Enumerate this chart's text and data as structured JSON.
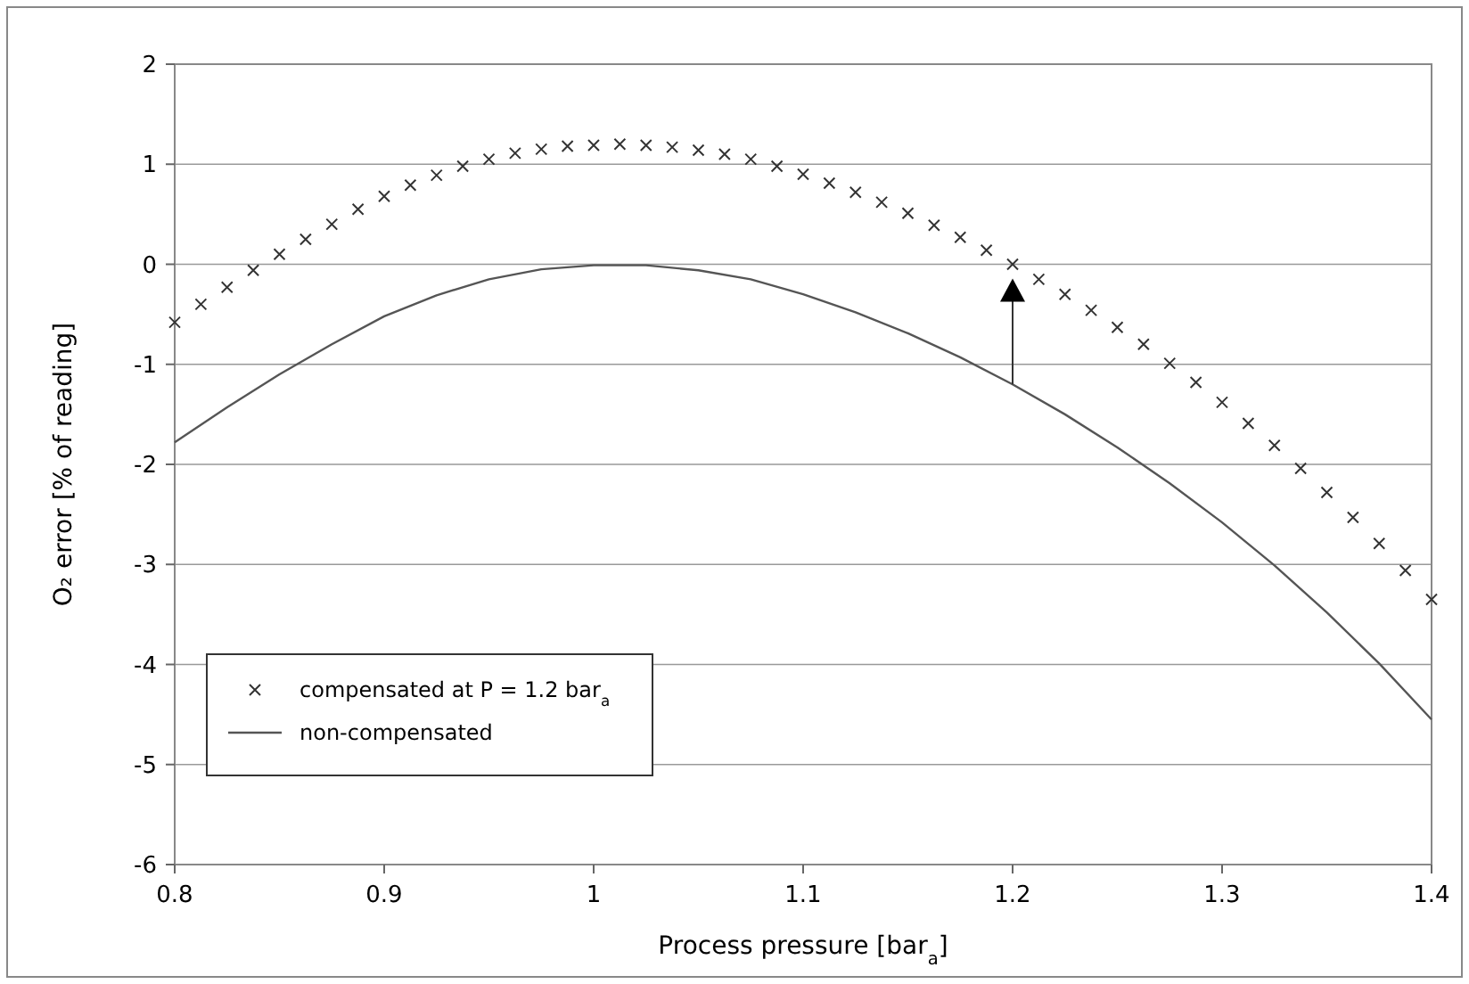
{
  "chart_data": {
    "type": "line",
    "xlabel": "Process pressure [bar$_{a}$]",
    "ylabel": "O₂ error [% of reading]",
    "xlim": [
      0.8,
      1.4
    ],
    "xticks": [
      0.8,
      0.9,
      1,
      1.1,
      1.2,
      1.3,
      1.4
    ],
    "ylim": [
      -6,
      2
    ],
    "yticks": [
      -6,
      -5,
      -4,
      -3,
      -2,
      -1,
      0,
      1,
      2
    ],
    "grid": "y",
    "legend": "bottom left",
    "series": [
      {
        "name": "compensated at P = 1.2 bar$_{a}$",
        "type": "scatter",
        "marker": "cross",
        "color": "#333333",
        "x": [
          0.8,
          0.8125,
          0.825,
          0.8375,
          0.85,
          0.8625,
          0.875,
          0.8875,
          0.9,
          0.9125,
          0.925,
          0.9375,
          0.95,
          0.9625,
          0.975,
          0.9875,
          1,
          1.0125,
          1.025,
          1.0375,
          1.05,
          1.0625,
          1.075,
          1.0875,
          1.1,
          1.1125,
          1.125,
          1.1375,
          1.15,
          1.1625,
          1.175,
          1.1875,
          1.2,
          1.2125,
          1.225,
          1.2375,
          1.25,
          1.2625,
          1.275,
          1.2875,
          1.3,
          1.3125,
          1.325,
          1.3375,
          1.35,
          1.3625,
          1.375,
          1.3875,
          1.4
        ],
        "values": [
          -0.58,
          -0.4,
          -0.23,
          -0.06,
          0.1,
          0.25,
          0.4,
          0.55,
          0.68,
          0.79,
          0.89,
          0.98,
          1.05,
          1.11,
          1.15,
          1.18,
          1.19,
          1.2,
          1.19,
          1.17,
          1.14,
          1.1,
          1.05,
          0.98,
          0.9,
          0.81,
          0.72,
          0.62,
          0.51,
          0.39,
          0.27,
          0.14,
          0,
          -0.15,
          -0.3,
          -0.46,
          -0.63,
          -0.8,
          -0.99,
          -1.18,
          -1.38,
          -1.59,
          -1.81,
          -2.04,
          -2.28,
          -2.53,
          -2.79,
          -3.06,
          -3.35
        ]
      },
      {
        "name": "non-compensated",
        "marker": "none",
        "color": "#555555",
        "x": [
          0.8,
          0.825,
          0.85,
          0.875,
          0.9,
          0.925,
          0.95,
          0.975,
          1,
          1.025,
          1.05,
          1.075,
          1.1,
          1.125,
          1.15,
          1.175,
          1.2,
          1.225,
          1.25,
          1.275,
          1.3,
          1.325,
          1.35,
          1.375,
          1.4
        ],
        "values": [
          -1.78,
          -1.43,
          -1.1,
          -0.8,
          -0.52,
          -0.31,
          -0.15,
          -0.05,
          -0.01,
          -0.01,
          -0.06,
          -0.15,
          -0.3,
          -0.48,
          -0.69,
          -0.93,
          -1.2,
          -1.5,
          -1.83,
          -2.19,
          -2.58,
          -3.01,
          -3.48,
          -3.99,
          -4.55
        ]
      }
    ]
  }
}
